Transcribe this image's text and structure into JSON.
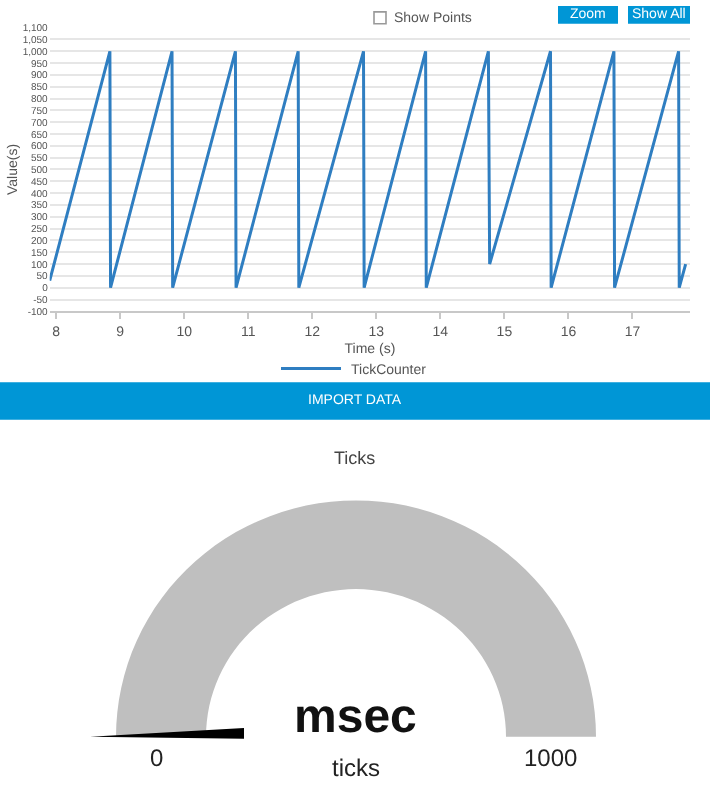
{
  "chart_data": [
    {
      "type": "line",
      "xlabel": "Time (s)",
      "ylabel": "Value(s)",
      "annotations": [
        "Show Points",
        "Zoom",
        "Show All",
        "IMPORT DATA"
      ],
      "series": [
        {
          "name": "TickCounter",
          "color": "#2f7ec1",
          "x": [
            7.9,
            8.84,
            8.85,
            9.81,
            9.82,
            10.8,
            10.81,
            11.78,
            11.79,
            12.8,
            12.81,
            13.77,
            13.78,
            14.75,
            14.77,
            15.72,
            15.73,
            16.71,
            16.72,
            17.72,
            17.73,
            17.83
          ],
          "values": [
            30,
            1000,
            0,
            1000,
            0,
            1000,
            0,
            1000,
            0,
            1000,
            0,
            1000,
            0,
            1000,
            100,
            1000,
            0,
            1000,
            0,
            1000,
            0,
            100
          ]
        }
      ],
      "xlim": [
        7.9,
        17.9
      ],
      "xticks": [
        8,
        9,
        10,
        11,
        12,
        13,
        14,
        15,
        16,
        17
      ],
      "ylim": [
        -100,
        1100
      ],
      "yticks": [
        {
          "value": -100,
          "label": "-100"
        },
        {
          "value": -50,
          "label": "-50"
        },
        0,
        50,
        100,
        150,
        200,
        250,
        300,
        350,
        400,
        450,
        500,
        550,
        600,
        650,
        700,
        750,
        800,
        850,
        900,
        950,
        {
          "value": 1000,
          "label": "1,000"
        },
        {
          "value": 1050,
          "label": "1,050"
        },
        {
          "value": 1100,
          "label": "1,100"
        }
      ],
      "grid": "y",
      "legend": "bottom",
      "marker": "none",
      "line_style": "solid"
    },
    {
      "type": "other",
      "title": "Ticks",
      "annotations": [
        "msec",
        "ticks",
        "0",
        "1000"
      ],
      "color": "#bfbfbf"
    }
  ]
}
